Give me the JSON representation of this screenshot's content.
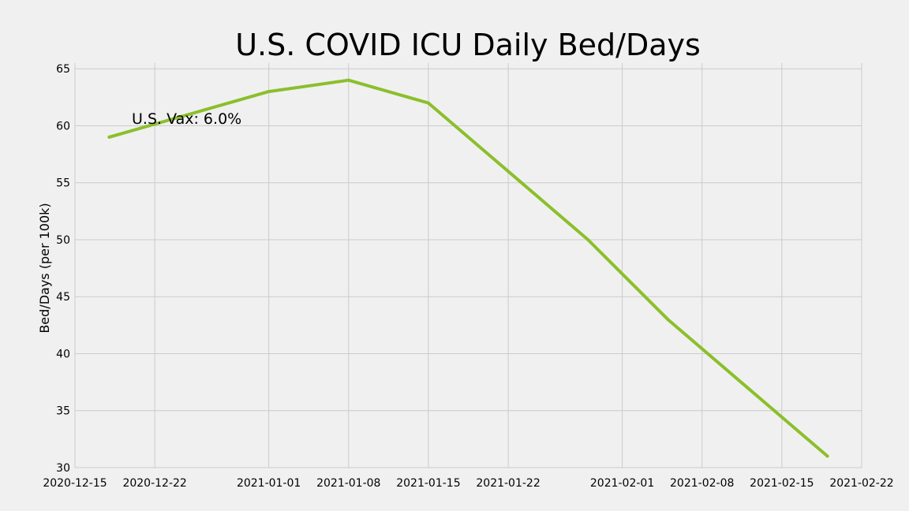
{
  "chart_data": {
    "type": "line",
    "title": "U.S. COVID ICU Daily Bed/Days",
    "xlabel": "",
    "ylabel": "Bed/Days (per 100k)",
    "annotation": "U.S. Vax: 6.0%",
    "x_ticks": [
      "2020-12-15",
      "2020-12-22",
      "2021-01-01",
      "2021-01-08",
      "2021-01-15",
      "2021-01-22",
      "2021-02-01",
      "2021-02-08",
      "2021-02-15",
      "2021-02-22"
    ],
    "y_ticks": [
      30,
      35,
      40,
      45,
      50,
      55,
      60,
      65
    ],
    "xlim": [
      "2020-12-15",
      "2021-02-22"
    ],
    "ylim": [
      30,
      65.5
    ],
    "grid": true,
    "line_color": "#8bbf2b",
    "series": [
      {
        "x": [
          "2020-12-18",
          "2020-12-25",
          "2021-01-01",
          "2021-01-08",
          "2021-01-15",
          "2021-01-22",
          "2021-01-29",
          "2021-02-05",
          "2021-02-12",
          "2021-02-19"
        ],
        "values": [
          59,
          61,
          63,
          64,
          62,
          56,
          50,
          43,
          37,
          31
        ]
      }
    ]
  }
}
